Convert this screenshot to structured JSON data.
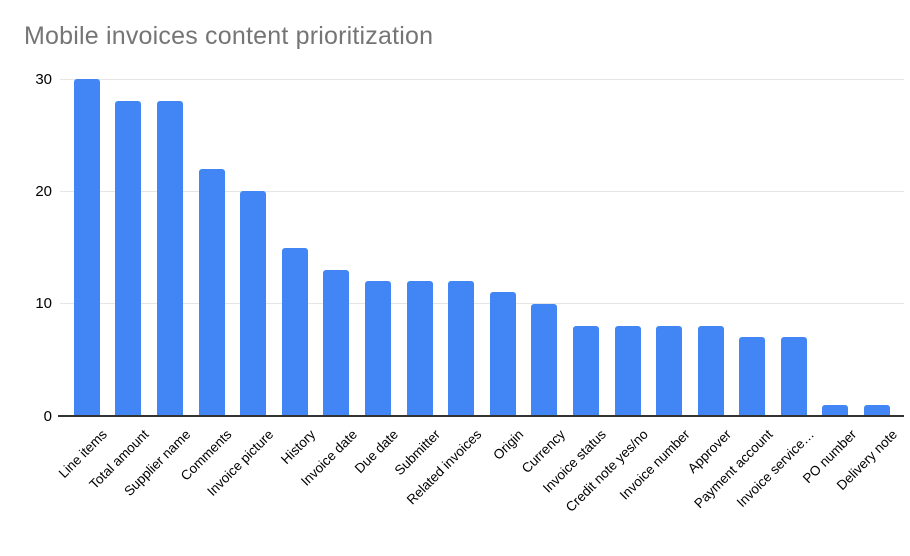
{
  "colors": {
    "bar": "#4285F4",
    "title_text": "#757575",
    "axis_text": "#000000",
    "gridline": "#e6e6e6",
    "baseline": "#333333",
    "background": "#ffffff"
  },
  "chart_data": {
    "type": "bar",
    "title": "Mobile invoices content prioritization",
    "categories": [
      "Line items",
      "Total amount",
      "Supplier name",
      "Comments",
      "Invoice picture",
      "History",
      "Invoice date",
      "Due date",
      "Submitter",
      "Related invoices",
      "Origin",
      "Currency",
      "Invoice status",
      "Credit note yes/no",
      "Invoice number",
      "Approver",
      "Payment account",
      "Invoice service…",
      "PO number",
      "Delivery note"
    ],
    "values": [
      30,
      28,
      28,
      22,
      20,
      15,
      13,
      12,
      12,
      12,
      11,
      10,
      8,
      8,
      8,
      8,
      7,
      7,
      1,
      1
    ],
    "xlabel": "",
    "ylabel": "",
    "ylim": [
      0,
      30
    ],
    "yticks": [
      0,
      10,
      20,
      30
    ],
    "grid": true,
    "legend": "none",
    "bar_orientation": "vertical"
  }
}
